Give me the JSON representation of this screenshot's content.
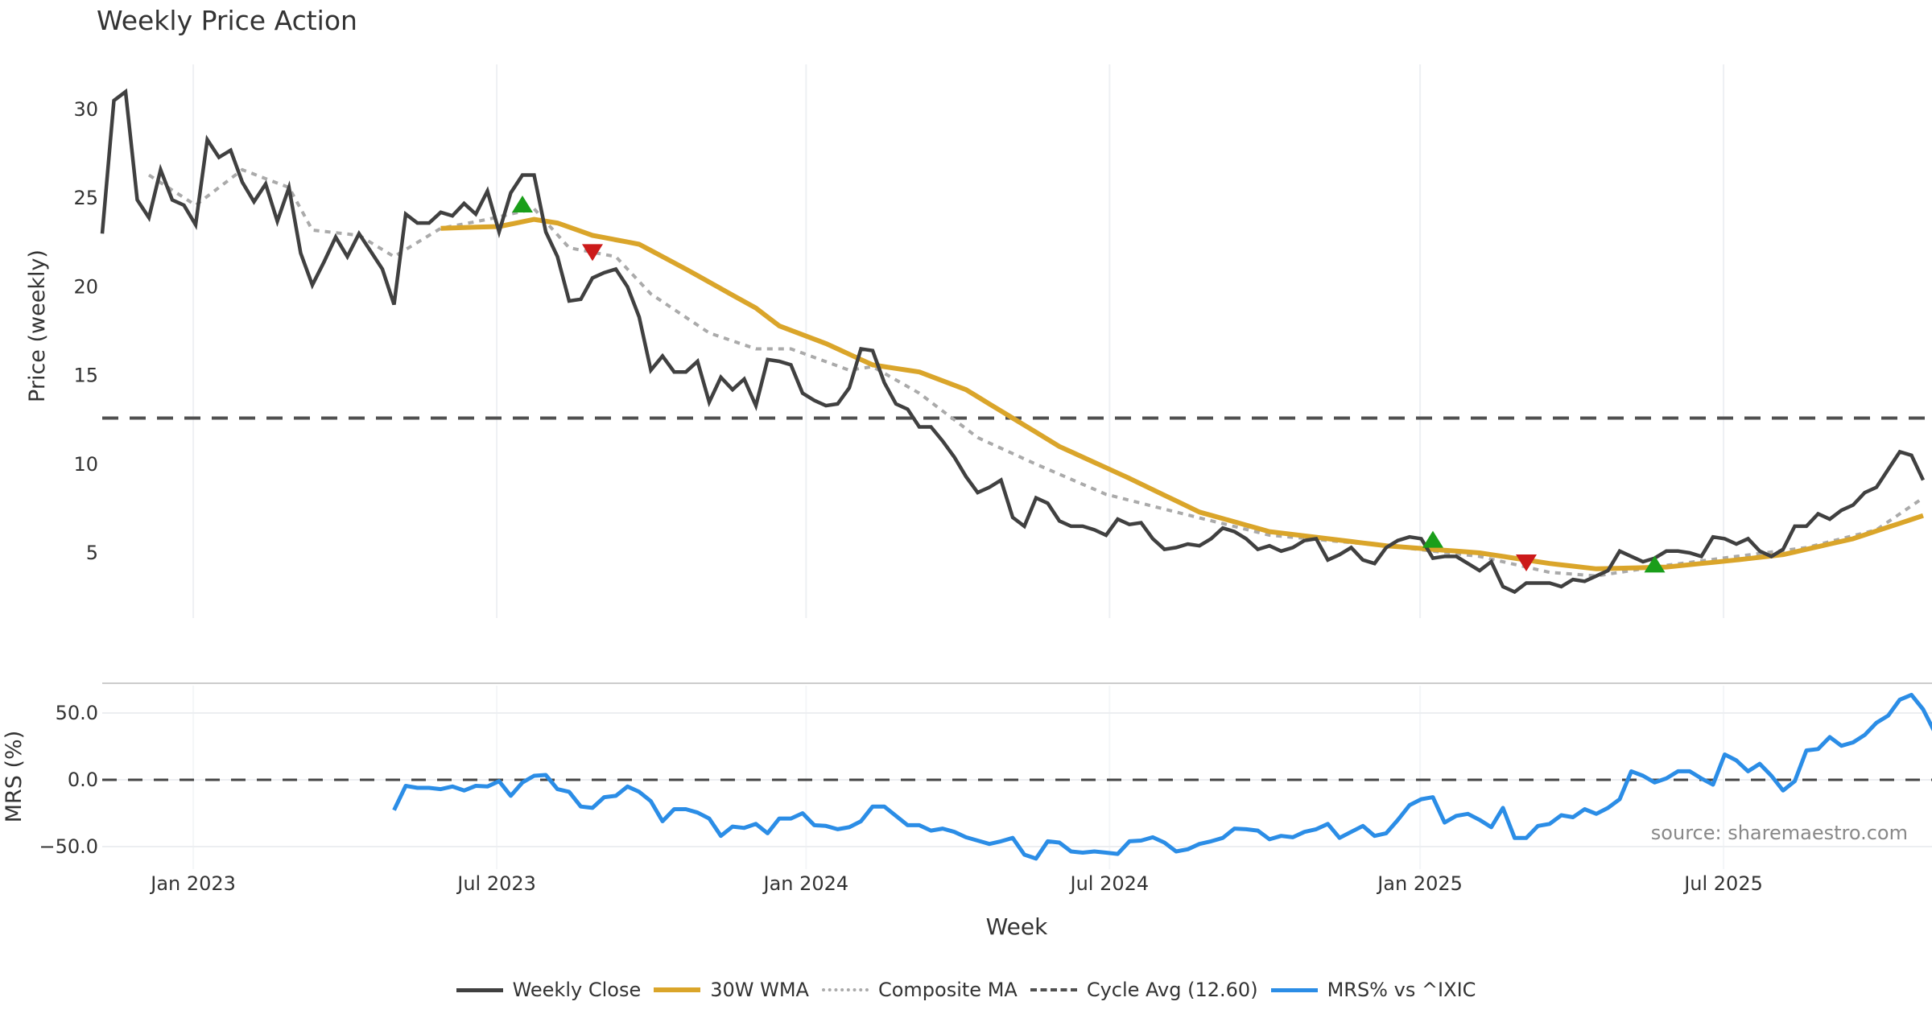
{
  "chart_data": {
    "type": "line",
    "title": "Weekly Price Action",
    "xlabel": "Week",
    "x_tick_labels": [
      "Jan 2023",
      "Jul 2023",
      "Jan 2024",
      "Jul 2024",
      "Jan 2025",
      "Jul 2025"
    ],
    "x_tick_weeks": [
      7.8,
      33.8,
      60.3,
      86.3,
      112.9,
      138.9
    ],
    "week_count": 157,
    "grid": true,
    "legend_position": "bottom-center",
    "price_panel": {
      "ylabel": "Price (weekly)",
      "ylim": [
        1.5,
        32.5
      ],
      "y_ticks": [
        5,
        10,
        15,
        20,
        25,
        30
      ],
      "y_tick_labels": [
        "5",
        "10",
        "15",
        "20",
        "25",
        "30"
      ],
      "series": [
        {
          "name": "Weekly Close",
          "color": "#404040",
          "style": "solid",
          "values": [
            23.0,
            30.5,
            31.0,
            24.9,
            23.9,
            26.6,
            24.9,
            24.6,
            23.5,
            28.3,
            27.3,
            27.7,
            25.9,
            24.8,
            25.8,
            23.7,
            25.6,
            21.9,
            20.1,
            21.4,
            22.8,
            21.7,
            23.0,
            22.0,
            21.0,
            19.0,
            24.1,
            23.6,
            23.6,
            24.2,
            24.0,
            24.7,
            24.1,
            25.4,
            23.1,
            25.3,
            26.3,
            26.3,
            23.1,
            21.7,
            19.2,
            19.3,
            20.5,
            20.8,
            21.0,
            20.0,
            18.3,
            15.3,
            16.1,
            15.2,
            15.2,
            15.8,
            13.5,
            14.9,
            14.2,
            14.8,
            13.3,
            15.9,
            15.8,
            15.6,
            14.0,
            13.6,
            13.3,
            13.4,
            14.3,
            16.5,
            16.4,
            14.6,
            13.4,
            13.1,
            12.1,
            12.1,
            11.3,
            10.4,
            9.3,
            8.4,
            8.7,
            9.1,
            7.0,
            6.5,
            8.1,
            7.8,
            6.8,
            6.5,
            6.5,
            6.3,
            6.0,
            6.9,
            6.6,
            6.7,
            5.8,
            5.2,
            5.3,
            5.5,
            5.4,
            5.8,
            6.4,
            6.2,
            5.8,
            5.2,
            5.4,
            5.1,
            5.3,
            5.7,
            5.8,
            4.6,
            4.9,
            5.3,
            4.6,
            4.4,
            5.3,
            5.7,
            5.9,
            5.8,
            4.7,
            4.8,
            4.8,
            4.4,
            4.0,
            4.5,
            3.1,
            2.8,
            3.3,
            3.3,
            3.3,
            3.1,
            3.5,
            3.4,
            3.7,
            4.0,
            5.1,
            4.8,
            4.5,
            4.7,
            5.1,
            5.1,
            5.0,
            4.8,
            5.9,
            5.8,
            5.5,
            5.8,
            5.1,
            4.8,
            5.2,
            6.5,
            6.5,
            7.2,
            6.9,
            7.4,
            7.7,
            8.4,
            8.7,
            9.7,
            10.7,
            10.5,
            9.1
          ]
        },
        {
          "name": "30W WMA",
          "color": "#DAA52A",
          "style": "solid",
          "keypoints": [
            [
              29,
              23.3
            ],
            [
              34,
              23.4
            ],
            [
              37,
              23.8
            ],
            [
              39,
              23.6
            ],
            [
              42,
              22.9
            ],
            [
              46,
              22.4
            ],
            [
              50,
              21.0
            ],
            [
              56,
              18.8
            ],
            [
              58,
              17.8
            ],
            [
              62,
              16.8
            ],
            [
              66,
              15.6
            ],
            [
              70,
              15.2
            ],
            [
              74,
              14.2
            ],
            [
              78,
              12.6
            ],
            [
              82,
              11.0
            ],
            [
              88,
              9.2
            ],
            [
              94,
              7.3
            ],
            [
              100,
              6.2
            ],
            [
              110,
              5.4
            ],
            [
              118,
              5.0
            ],
            [
              124,
              4.4
            ],
            [
              128,
              4.1
            ],
            [
              134,
              4.2
            ],
            [
              140,
              4.6
            ],
            [
              144,
              4.9
            ],
            [
              150,
              5.8
            ],
            [
              156,
              7.1
            ]
          ]
        },
        {
          "name": "Composite MA",
          "color": "#AAAAAA",
          "style": "dotted",
          "keypoints": [
            [
              4,
              26.3
            ],
            [
              8,
              24.6
            ],
            [
              12,
              26.6
            ],
            [
              16,
              25.6
            ],
            [
              18,
              23.2
            ],
            [
              22,
              22.9
            ],
            [
              25,
              21.7
            ],
            [
              29,
              23.3
            ],
            [
              33,
              23.8
            ],
            [
              37,
              24.4
            ],
            [
              40,
              22.2
            ],
            [
              44,
              21.7
            ],
            [
              47,
              19.6
            ],
            [
              52,
              17.4
            ],
            [
              56,
              16.5
            ],
            [
              59,
              16.5
            ],
            [
              64,
              15.3
            ],
            [
              66,
              15.5
            ],
            [
              70,
              14.0
            ],
            [
              75,
              11.5
            ],
            [
              80,
              10.0
            ],
            [
              86,
              8.3
            ],
            [
              92,
              7.3
            ],
            [
              100,
              6.0
            ],
            [
              110,
              5.4
            ],
            [
              118,
              4.8
            ],
            [
              124,
              3.9
            ],
            [
              128,
              3.7
            ],
            [
              134,
              4.3
            ],
            [
              140,
              4.8
            ],
            [
              146,
              5.3
            ],
            [
              152,
              6.3
            ],
            [
              156,
              8.1
            ]
          ]
        },
        {
          "name": "Cycle Avg (12.60)",
          "color": "#505050",
          "style": "dashed",
          "value": 12.6
        }
      ],
      "signals": [
        {
          "type": "buy",
          "week": 36,
          "price": 24.6,
          "color": "#1A9E1A"
        },
        {
          "type": "sell",
          "week": 42,
          "price": 22.0,
          "color": "#CC1A1A"
        },
        {
          "type": "buy",
          "week": 114,
          "price": 5.7,
          "color": "#1A9E1A"
        },
        {
          "type": "sell",
          "week": 122,
          "price": 4.5,
          "color": "#CC1A1A"
        },
        {
          "type": "buy",
          "week": 133,
          "price": 4.3,
          "color": "#1A9E1A"
        }
      ]
    },
    "mrs_panel": {
      "ylabel": "MRS (%)",
      "ylim": [
        -72,
        76
      ],
      "y_ticks": [
        50,
        0,
        -50
      ],
      "y_tick_labels": [
        "50.0",
        "0.0",
        "−50.0"
      ],
      "zero_line": 0,
      "series": [
        {
          "name": "MRS% vs ^IXIC",
          "color": "#2B8DE6",
          "start_week": 25,
          "values": [
            -22.7,
            -4.5,
            -6,
            -6,
            -7,
            -5,
            -8,
            -4.5,
            -5,
            -1,
            -12,
            -2,
            3,
            3.6,
            -7,
            -9,
            -20,
            -21,
            -13,
            -12,
            -5,
            -9,
            -16,
            -31,
            -22,
            -22,
            -24.5,
            -29,
            -42,
            -35,
            -36,
            -33,
            -40,
            -29,
            -29,
            -25,
            -34,
            -34.5,
            -37,
            -35.5,
            -31,
            -20,
            -20,
            -27,
            -34,
            -34,
            -38,
            -36.5,
            -39,
            -43,
            -45.5,
            -48,
            -46,
            -43.5,
            -56,
            -59,
            -46,
            -47,
            -53.6,
            -54.5,
            -53.6,
            -54.5,
            -55.5,
            -46,
            -45.5,
            -43,
            -47,
            -53.6,
            -52,
            -48,
            -46,
            -43.5,
            -36.5,
            -37,
            -38,
            -44.5,
            -42,
            -43,
            -39,
            -37,
            -33,
            -43.5,
            -39,
            -34.5,
            -42,
            -40,
            -30,
            -19,
            -14.5,
            -13,
            -32,
            -27,
            -25.5,
            -30,
            -35.5,
            -21,
            -43.5,
            -43.5,
            -34.5,
            -33,
            -26.5,
            -28,
            -22,
            -25.5,
            -21,
            -14.5,
            6.4,
            3,
            -2,
            1,
            6.4,
            6.4,
            1,
            -3.6,
            19,
            14.5,
            6.4,
            12,
            3,
            -8,
            -1,
            22,
            23,
            32,
            25.5,
            28,
            33.6,
            42.7,
            48,
            60,
            63.6,
            52.7,
            35.5
          ]
        }
      ]
    },
    "legend": [
      {
        "label": "Weekly Close",
        "color": "#404040",
        "style": "solid"
      },
      {
        "label": "30W WMA",
        "color": "#DAA52A",
        "style": "solid"
      },
      {
        "label": "Composite MA",
        "color": "#AAAAAA",
        "style": "dotted"
      },
      {
        "label": "Cycle Avg (12.60)",
        "color": "#505050",
        "style": "dashed"
      },
      {
        "label": "MRS% vs ^IXIC",
        "color": "#2B8DE6",
        "style": "solid"
      }
    ],
    "annotation": "source: sharemaestro.com"
  }
}
